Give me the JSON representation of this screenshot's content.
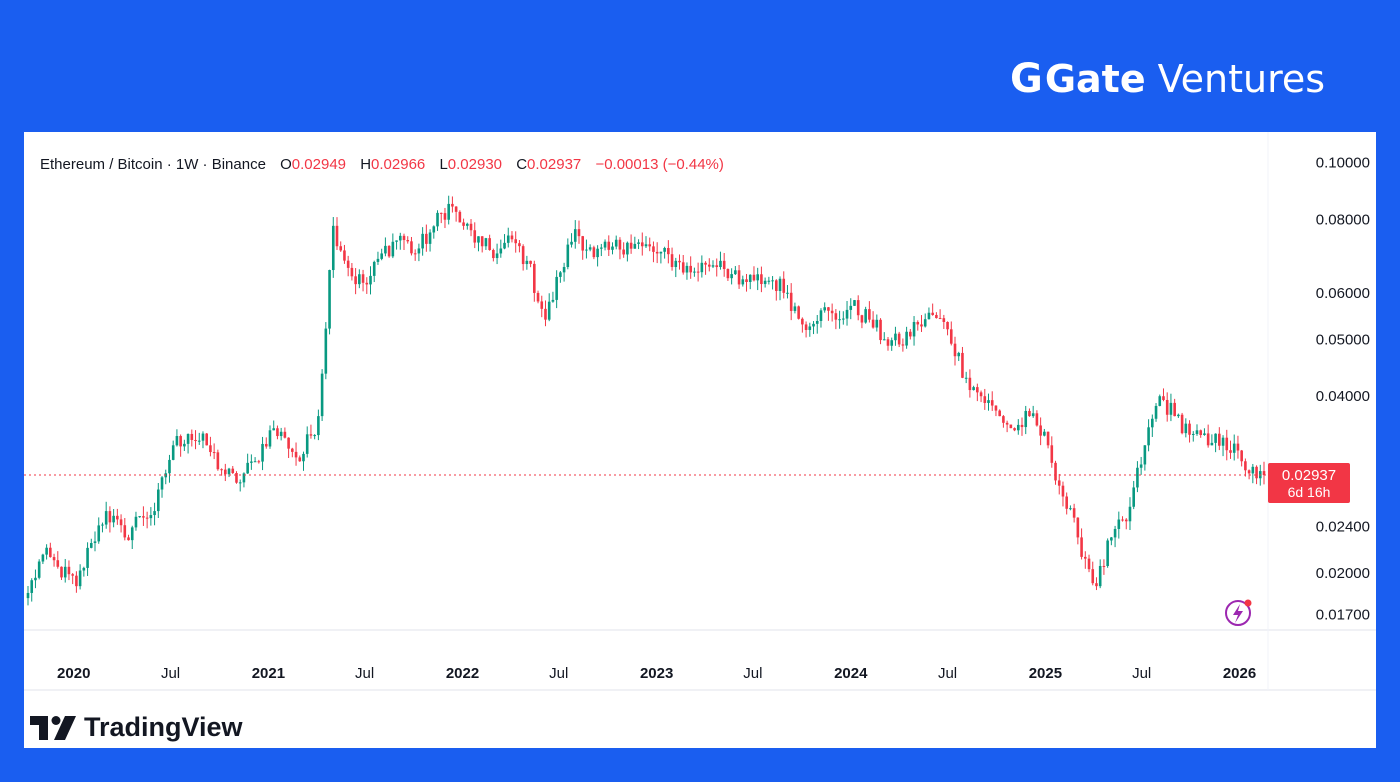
{
  "brand": {
    "name": "Gate",
    "sub": "Ventures"
  },
  "header": {
    "symbol": "Ethereum / Bitcoin · 1W · Binance",
    "o_label": "O",
    "o": "0.02949",
    "h_label": "H",
    "h": "0.02966",
    "l_label": "L",
    "l": "0.02930",
    "c_label": "C",
    "c": "0.02937",
    "change": "−0.00013 (−0.44%)"
  },
  "price_tag": {
    "price": "0.02937",
    "countdown": "6d 16h"
  },
  "footer": {
    "logo_text": "TradingView"
  },
  "colors": {
    "up": "#089981",
    "down": "#f23645",
    "background": "#1a5ef0"
  },
  "chart_data": {
    "type": "candlestick",
    "scale": "log",
    "ylim": [
      0.016,
      0.105
    ],
    "y_ticks": [
      "0.10000",
      "0.08000",
      "0.06000",
      "0.05000",
      "0.04000",
      "0.02400",
      "0.02000",
      "0.01700"
    ],
    "y_tick_values": [
      0.1,
      0.08,
      0.06,
      0.05,
      0.04,
      0.024,
      0.02,
      0.017
    ],
    "x_ticks": [
      {
        "label": "2020",
        "date": "2020-01-01",
        "bold": true
      },
      {
        "label": "Jul",
        "date": "2020-07-01",
        "bold": false
      },
      {
        "label": "2021",
        "date": "2021-01-01",
        "bold": true
      },
      {
        "label": "Jul",
        "date": "2021-07-01",
        "bold": false
      },
      {
        "label": "2022",
        "date": "2022-01-01",
        "bold": true
      },
      {
        "label": "Jul",
        "date": "2022-07-01",
        "bold": false
      },
      {
        "label": "2023",
        "date": "2023-01-01",
        "bold": true
      },
      {
        "label": "Jul",
        "date": "2023-07-01",
        "bold": false
      },
      {
        "label": "2024",
        "date": "2024-01-01",
        "bold": true
      },
      {
        "label": "Jul",
        "date": "2024-07-01",
        "bold": false
      },
      {
        "label": "2025",
        "date": "2025-01-01",
        "bold": true
      },
      {
        "label": "Jul",
        "date": "2025-07-01",
        "bold": false
      },
      {
        "label": "2026",
        "date": "2026-01-01",
        "bold": true
      }
    ],
    "xlim": [
      "2019-10-07",
      "2026-02-16"
    ],
    "last_price": 0.02937,
    "series": [
      {
        "name": "ETH/BTC close",
        "points": [
          [
            "2019-10-07",
            0.0185
          ],
          [
            "2019-11-04",
            0.0215
          ],
          [
            "2019-12-02",
            0.0205
          ],
          [
            "2020-01-06",
            0.019
          ],
          [
            "2020-02-03",
            0.0225
          ],
          [
            "2020-03-02",
            0.0255
          ],
          [
            "2020-04-06",
            0.023
          ],
          [
            "2020-05-04",
            0.025
          ],
          [
            "2020-06-01",
            0.0255
          ],
          [
            "2020-07-06",
            0.033
          ],
          [
            "2020-08-03",
            0.0345
          ],
          [
            "2020-09-07",
            0.033
          ],
          [
            "2020-10-05",
            0.03
          ],
          [
            "2020-11-02",
            0.0285
          ],
          [
            "2020-12-07",
            0.031
          ],
          [
            "2021-01-04",
            0.035
          ],
          [
            "2021-02-01",
            0.034
          ],
          [
            "2021-03-01",
            0.031
          ],
          [
            "2021-04-05",
            0.037
          ],
          [
            "2021-05-03",
            0.078
          ],
          [
            "2021-06-07",
            0.064
          ],
          [
            "2021-07-05",
            0.062
          ],
          [
            "2021-08-02",
            0.07
          ],
          [
            "2021-09-06",
            0.075
          ],
          [
            "2021-10-04",
            0.07
          ],
          [
            "2021-11-01",
            0.076
          ],
          [
            "2021-12-06",
            0.085
          ],
          [
            "2022-01-03",
            0.078
          ],
          [
            "2022-02-07",
            0.072
          ],
          [
            "2022-03-07",
            0.07
          ],
          [
            "2022-04-04",
            0.074
          ],
          [
            "2022-05-02",
            0.068
          ],
          [
            "2022-06-06",
            0.054
          ],
          [
            "2022-07-04",
            0.065
          ],
          [
            "2022-08-01",
            0.077
          ],
          [
            "2022-09-05",
            0.069
          ],
          [
            "2022-10-03",
            0.071
          ],
          [
            "2022-11-07",
            0.073
          ],
          [
            "2022-12-05",
            0.072
          ],
          [
            "2023-01-02",
            0.07
          ],
          [
            "2023-02-06",
            0.068
          ],
          [
            "2023-03-06",
            0.065
          ],
          [
            "2023-04-03",
            0.067
          ],
          [
            "2023-05-01",
            0.068
          ],
          [
            "2023-06-05",
            0.062
          ],
          [
            "2023-07-03",
            0.063
          ],
          [
            "2023-08-07",
            0.063
          ],
          [
            "2023-09-04",
            0.06
          ],
          [
            "2023-10-02",
            0.053
          ],
          [
            "2023-11-06",
            0.056
          ],
          [
            "2023-12-04",
            0.054
          ],
          [
            "2024-01-01",
            0.057
          ],
          [
            "2024-02-05",
            0.054
          ],
          [
            "2024-03-04",
            0.05
          ],
          [
            "2024-04-01",
            0.049
          ],
          [
            "2024-05-06",
            0.053
          ],
          [
            "2024-06-03",
            0.055
          ],
          [
            "2024-07-01",
            0.052
          ],
          [
            "2024-08-05",
            0.043
          ],
          [
            "2024-09-02",
            0.04
          ],
          [
            "2024-10-07",
            0.037
          ],
          [
            "2024-11-04",
            0.035
          ],
          [
            "2024-12-02",
            0.037
          ],
          [
            "2025-01-06",
            0.033
          ],
          [
            "2025-02-03",
            0.027
          ],
          [
            "2025-03-03",
            0.023
          ],
          [
            "2025-04-07",
            0.019
          ],
          [
            "2025-05-05",
            0.023
          ],
          [
            "2025-06-02",
            0.0245
          ],
          [
            "2025-07-07",
            0.033
          ],
          [
            "2025-08-04",
            0.04
          ],
          [
            "2025-09-01",
            0.037
          ],
          [
            "2025-10-06",
            0.0345
          ],
          [
            "2025-11-03",
            0.033
          ],
          [
            "2025-12-01",
            0.034
          ],
          [
            "2026-01-05",
            0.031
          ],
          [
            "2026-02-02",
            0.029
          ],
          [
            "2026-02-16",
            0.02937
          ]
        ]
      }
    ]
  }
}
